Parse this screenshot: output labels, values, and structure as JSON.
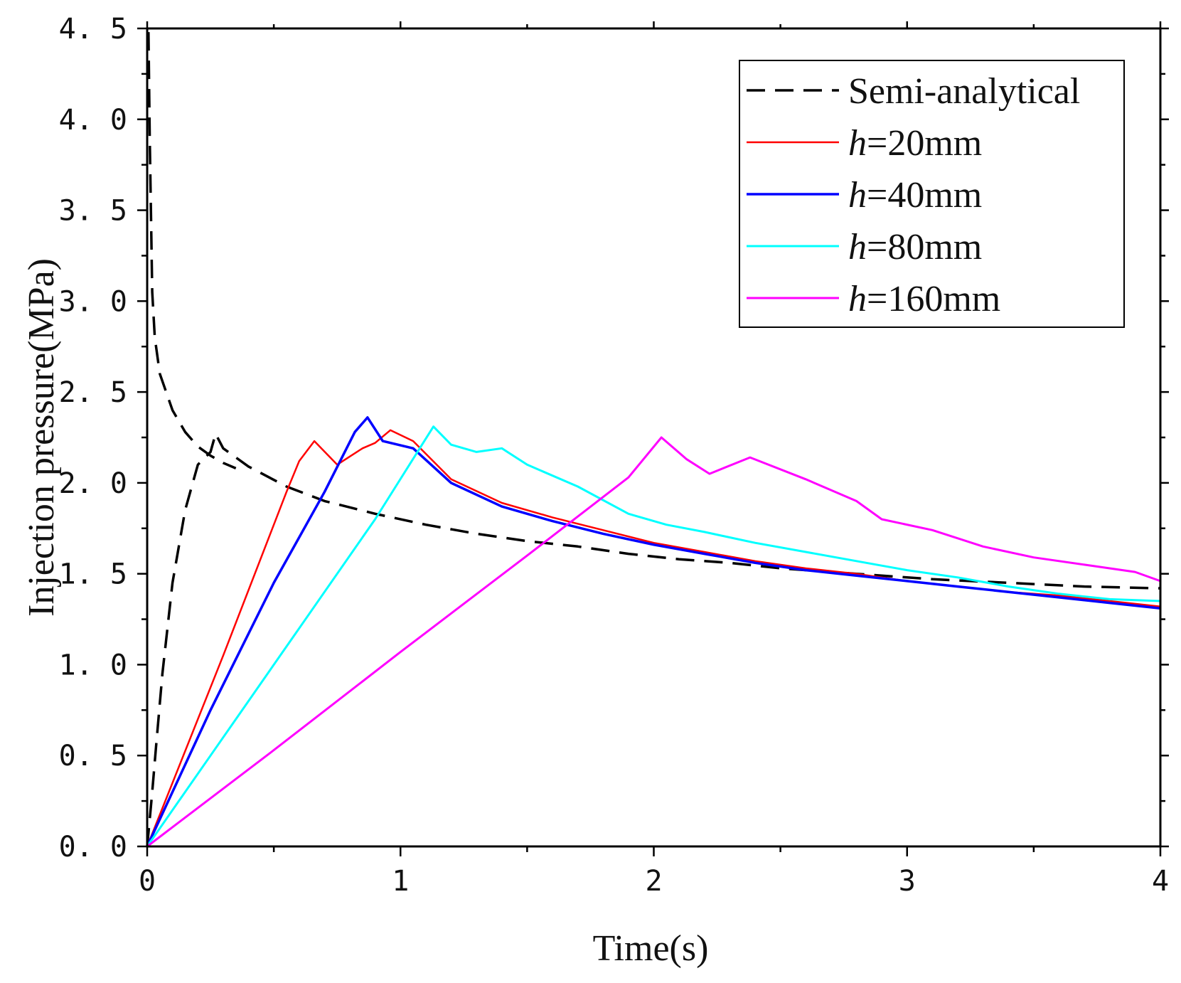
{
  "chart_data": {
    "type": "line",
    "title": "",
    "xlabel": "Time(s)",
    "ylabel": "Injection pressure(MPa)",
    "xlim": [
      0,
      4
    ],
    "ylim": [
      0,
      4.5
    ],
    "x_ticks": [
      0,
      1,
      2,
      3,
      4
    ],
    "x_tick_labels": [
      "0",
      "1",
      "2",
      "3",
      "4"
    ],
    "y_ticks": [
      0,
      0.5,
      1.0,
      1.5,
      2.0,
      2.5,
      3.0,
      3.5,
      4.0,
      4.5
    ],
    "y_tick_labels": [
      "0. 0",
      "0. 5",
      "1. 0",
      "1. 5",
      "2. 0",
      "2. 5",
      "3. 0",
      "3. 5",
      "4. 0",
      "4. 5"
    ],
    "grid": false,
    "legend_position": "top-right",
    "series": [
      {
        "name": "Semi-analytical",
        "legend_prefix": "",
        "legend_suffix": "Semi-analytical",
        "color": "#000000",
        "dash": "dashed",
        "x": [
          0.0,
          0.01,
          0.02,
          0.035,
          0.06,
          0.1,
          0.15,
          0.2,
          0.25,
          0.27,
          0.3,
          0.4,
          0.55,
          0.7,
          0.9,
          1.1,
          1.3,
          1.5,
          1.7,
          1.9,
          2.1,
          2.3,
          2.5,
          2.8,
          3.1,
          3.4,
          3.7,
          4.0
        ],
        "y": [
          0.0,
          0.15,
          0.3,
          0.55,
          0.95,
          1.45,
          1.85,
          2.1,
          2.17,
          2.27,
          2.19,
          2.09,
          1.98,
          1.9,
          1.83,
          1.77,
          1.72,
          1.68,
          1.65,
          1.61,
          1.58,
          1.56,
          1.53,
          1.5,
          1.47,
          1.45,
          1.43,
          1.42
        ]
      },
      {
        "name": "Semi-analytical-early",
        "legend": false,
        "color": "#000000",
        "dash": "dashed",
        "x": [
          0.005,
          0.01,
          0.02,
          0.03,
          0.05,
          0.1,
          0.15,
          0.2,
          0.25,
          0.3,
          0.35
        ],
        "y": [
          4.48,
          3.9,
          3.05,
          2.8,
          2.6,
          2.4,
          2.28,
          2.2,
          2.15,
          2.11,
          2.08
        ]
      },
      {
        "name": "h=20mm",
        "legend_prefix": "h",
        "legend_suffix": "=20mm",
        "color": "#ff0000",
        "dash": "solid",
        "width": 2.5,
        "x": [
          0.0,
          0.3,
          0.55,
          0.6,
          0.66,
          0.75,
          0.85,
          0.9,
          0.96,
          1.05,
          1.2,
          1.4,
          1.6,
          1.8,
          2.0,
          2.2,
          2.4,
          2.6,
          2.8,
          3.0,
          3.2,
          3.4,
          3.6,
          3.8,
          4.0
        ],
        "y": [
          0.0,
          1.05,
          1.95,
          2.12,
          2.23,
          2.1,
          2.19,
          2.22,
          2.29,
          2.23,
          2.02,
          1.89,
          1.81,
          1.74,
          1.67,
          1.62,
          1.57,
          1.53,
          1.5,
          1.46,
          1.43,
          1.4,
          1.38,
          1.35,
          1.32
        ]
      },
      {
        "name": "h=40mm",
        "legend_prefix": "h",
        "legend_suffix": "=40mm",
        "color": "#0000ff",
        "dash": "solid",
        "width": 3.5,
        "x": [
          0.0,
          0.25,
          0.5,
          0.7,
          0.82,
          0.87,
          0.93,
          1.05,
          1.2,
          1.4,
          1.6,
          1.8,
          2.0,
          2.2,
          2.4,
          2.6,
          2.8,
          3.0,
          3.2,
          3.4,
          3.6,
          3.8,
          4.0
        ],
        "y": [
          0.0,
          0.75,
          1.45,
          1.95,
          2.28,
          2.36,
          2.23,
          2.19,
          2.0,
          1.87,
          1.79,
          1.72,
          1.66,
          1.61,
          1.56,
          1.52,
          1.49,
          1.46,
          1.43,
          1.4,
          1.37,
          1.34,
          1.31
        ]
      },
      {
        "name": "h=80mm",
        "legend_prefix": "h",
        "legend_suffix": "=80mm",
        "color": "#00ffff",
        "dash": "solid",
        "width": 3,
        "x": [
          0.0,
          0.3,
          0.6,
          0.9,
          1.13,
          1.2,
          1.3,
          1.4,
          1.5,
          1.7,
          1.9,
          2.05,
          2.2,
          2.4,
          2.6,
          2.8,
          3.0,
          3.2,
          3.4,
          3.6,
          3.8,
          4.0
        ],
        "y": [
          0.0,
          0.6,
          1.2,
          1.8,
          2.31,
          2.21,
          2.17,
          2.19,
          2.1,
          1.98,
          1.83,
          1.77,
          1.73,
          1.67,
          1.62,
          1.57,
          1.52,
          1.48,
          1.43,
          1.39,
          1.36,
          1.35
        ]
      },
      {
        "name": "h=160mm",
        "legend_prefix": "h",
        "legend_suffix": "=160mm",
        "color": "#ff00ff",
        "dash": "solid",
        "width": 3,
        "x": [
          0.0,
          0.5,
          1.0,
          1.5,
          1.9,
          2.03,
          2.13,
          2.22,
          2.38,
          2.6,
          2.8,
          2.9,
          3.1,
          3.3,
          3.5,
          3.7,
          3.9,
          4.0
        ],
        "y": [
          0.0,
          0.53,
          1.07,
          1.6,
          2.03,
          2.25,
          2.13,
          2.05,
          2.14,
          2.02,
          1.9,
          1.8,
          1.74,
          1.65,
          1.59,
          1.55,
          1.51,
          1.46
        ]
      }
    ]
  }
}
